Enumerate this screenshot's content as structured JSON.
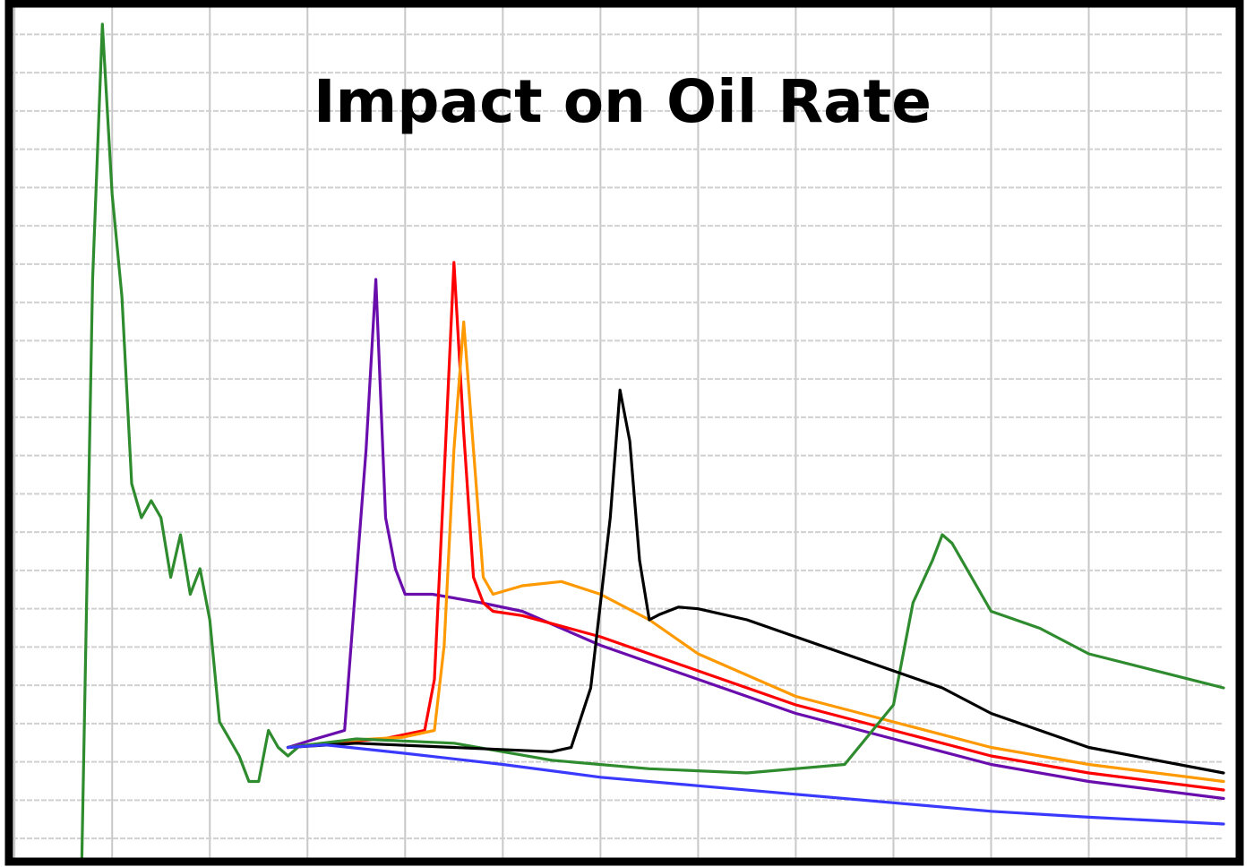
{
  "chart_data": {
    "type": "line",
    "title": "Impact on Oil Rate",
    "xlabel": "",
    "ylabel": "",
    "xlim": [
      0,
      124
    ],
    "ylim": [
      0,
      100
    ],
    "grid": true,
    "axis_tick_labels_visible": false,
    "legend": "none",
    "series": [
      {
        "color": "#2e8b2e",
        "points": [
          [
            7.1,
            0
          ],
          [
            8.2,
            68
          ],
          [
            9.2,
            98
          ],
          [
            10.2,
            78
          ],
          [
            11.2,
            66
          ],
          [
            12.2,
            44
          ],
          [
            13.2,
            40
          ],
          [
            14.2,
            42
          ],
          [
            15.2,
            40
          ],
          [
            16.2,
            33
          ],
          [
            17.2,
            38
          ],
          [
            18.2,
            31
          ],
          [
            19.2,
            34
          ],
          [
            20.2,
            28
          ],
          [
            21.2,
            16
          ],
          [
            22.2,
            14
          ],
          [
            23.2,
            12
          ],
          [
            24.2,
            9
          ],
          [
            25.2,
            9
          ],
          [
            26.2,
            15
          ],
          [
            27.2,
            13
          ],
          [
            28.2,
            12
          ],
          [
            29.2,
            13
          ]
        ]
      },
      {
        "color": "#6a0dad",
        "points": [
          [
            28.2,
            13
          ],
          [
            31,
            14
          ],
          [
            34,
            15
          ],
          [
            36.2,
            48
          ],
          [
            37.2,
            68
          ],
          [
            38.2,
            40
          ],
          [
            39.2,
            34
          ],
          [
            40.2,
            31
          ],
          [
            43,
            31
          ],
          [
            48,
            30
          ],
          [
            52.2,
            29
          ],
          [
            60.2,
            25
          ],
          [
            70.2,
            21
          ],
          [
            80.2,
            17
          ],
          [
            90.2,
            14
          ],
          [
            100.2,
            11
          ],
          [
            110.2,
            9
          ],
          [
            124,
            7
          ]
        ]
      },
      {
        "color": "#ff0000",
        "points": [
          [
            28.2,
            13
          ],
          [
            33,
            13.6
          ],
          [
            38,
            14
          ],
          [
            42.2,
            15
          ],
          [
            43.2,
            21
          ],
          [
            44.2,
            45
          ],
          [
            45.2,
            70
          ],
          [
            46.2,
            50
          ],
          [
            47.2,
            33
          ],
          [
            48.2,
            30
          ],
          [
            49.2,
            29
          ],
          [
            52.2,
            28.5
          ],
          [
            60.2,
            26
          ],
          [
            70.2,
            22
          ],
          [
            80.2,
            18
          ],
          [
            90.2,
            15
          ],
          [
            100.2,
            12
          ],
          [
            110.2,
            10
          ],
          [
            124,
            8
          ]
        ]
      },
      {
        "color": "#ff9900",
        "points": [
          [
            28.2,
            13
          ],
          [
            34,
            13.8
          ],
          [
            40,
            14.2
          ],
          [
            43.2,
            15
          ],
          [
            44.2,
            25
          ],
          [
            45.2,
            48
          ],
          [
            46.2,
            63
          ],
          [
            47.2,
            48
          ],
          [
            48.2,
            33
          ],
          [
            49.2,
            31
          ],
          [
            52.2,
            32
          ],
          [
            56.2,
            32.5
          ],
          [
            60.2,
            31
          ],
          [
            65.2,
            28
          ],
          [
            70.2,
            24
          ],
          [
            80.2,
            19
          ],
          [
            90.2,
            16
          ],
          [
            100.2,
            13
          ],
          [
            110.2,
            11
          ],
          [
            124,
            9
          ]
        ]
      },
      {
        "color": "#2e8b2e",
        "points": [
          [
            28.2,
            13
          ],
          [
            35.2,
            14
          ],
          [
            45.2,
            13.5
          ],
          [
            55.2,
            11.5
          ],
          [
            65.2,
            10.5
          ],
          [
            75.2,
            10
          ],
          [
            85.2,
            11
          ],
          [
            90.2,
            18
          ],
          [
            92.2,
            30
          ],
          [
            94.2,
            35
          ],
          [
            95.2,
            38
          ],
          [
            96.2,
            37
          ],
          [
            98.2,
            33
          ],
          [
            100.2,
            29
          ],
          [
            105.2,
            27
          ],
          [
            110.2,
            24
          ],
          [
            124,
            20
          ]
        ]
      },
      {
        "color": "#000000",
        "points": [
          [
            28.2,
            13
          ],
          [
            35.2,
            13.5
          ],
          [
            45.2,
            13
          ],
          [
            55.2,
            12.5
          ],
          [
            57.2,
            13
          ],
          [
            59.2,
            20
          ],
          [
            61.2,
            40
          ],
          [
            62.2,
            55
          ],
          [
            63.2,
            49
          ],
          [
            64.2,
            35
          ],
          [
            65.2,
            28
          ],
          [
            66.2,
            28.6
          ],
          [
            68.2,
            29.5
          ],
          [
            70.2,
            29.3
          ],
          [
            75.2,
            28
          ],
          [
            80.2,
            26
          ],
          [
            85.2,
            24
          ],
          [
            90.2,
            22
          ],
          [
            95.2,
            20
          ],
          [
            100.2,
            17
          ],
          [
            105.2,
            15
          ],
          [
            110.2,
            13
          ],
          [
            124,
            10
          ]
        ]
      },
      {
        "color": "#3a3aff",
        "points": [
          [
            28.2,
            13
          ],
          [
            32,
            13.3
          ],
          [
            40.2,
            12.3
          ],
          [
            50.2,
            11
          ],
          [
            60.2,
            9.5
          ],
          [
            70.2,
            8.5
          ],
          [
            80.2,
            7.5
          ],
          [
            90.2,
            6.5
          ],
          [
            100.2,
            5.5
          ],
          [
            110.2,
            4.8
          ],
          [
            124,
            4
          ]
        ]
      }
    ]
  }
}
